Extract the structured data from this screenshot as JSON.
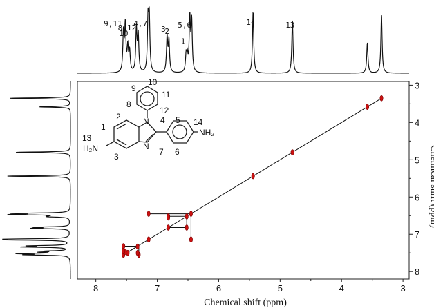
{
  "chart_data": {
    "type": "scatter",
    "subtype": "2D NMR COSY-style spectrum",
    "title": "",
    "xlabel": "Chemical shift (ppm)",
    "ylabel": "Chemical shift (ppm)",
    "xlim": [
      8.3,
      2.9
    ],
    "ylim": [
      2.9,
      8.2
    ],
    "x_ticks": [
      8,
      7,
      6,
      5,
      4,
      3
    ],
    "y_ticks": [
      3,
      4,
      5,
      6,
      7,
      8
    ],
    "grid": false,
    "legend": "none",
    "diagonal": {
      "from": [
        7.55,
        7.55
      ],
      "to": [
        3.35,
        3.35
      ]
    },
    "peaks_1d": [
      {
        "ppm": 7.55,
        "height": 0.62
      },
      {
        "ppm": 7.52,
        "height": 0.72
      },
      {
        "ppm": 7.48,
        "height": 0.38
      },
      {
        "ppm": 7.45,
        "height": 0.32
      },
      {
        "ppm": 7.34,
        "height": 0.68
      },
      {
        "ppm": 7.31,
        "height": 0.58
      },
      {
        "ppm": 7.15,
        "height": 0.8
      },
      {
        "ppm": 7.13,
        "height": 0.82
      },
      {
        "ppm": 6.84,
        "height": 0.55
      },
      {
        "ppm": 6.81,
        "height": 0.5
      },
      {
        "ppm": 6.53,
        "height": 0.26
      },
      {
        "ppm": 6.51,
        "height": 0.22
      },
      {
        "ppm": 6.47,
        "height": 0.83
      },
      {
        "ppm": 6.44,
        "height": 0.8
      },
      {
        "ppm": 5.44,
        "height": 0.97
      },
      {
        "ppm": 4.8,
        "height": 0.84
      },
      {
        "ppm": 3.58,
        "height": 0.48
      },
      {
        "ppm": 3.35,
        "height": 0.93
      }
    ],
    "peak_labels": [
      {
        "text": "9,11",
        "ppm": 7.55,
        "offset": 0.0
      },
      {
        "text": "10",
        "ppm": 7.45,
        "offset": 0.35
      },
      {
        "text": "8,12",
        "ppm": 7.32,
        "offset": 0.15
      },
      {
        "text": "4,7",
        "ppm": 7.14,
        "offset": 0.0
      },
      {
        "text": "3",
        "ppm": 6.84,
        "offset": 0.2
      },
      {
        "text": "2",
        "ppm": 6.78,
        "offset": 0.28
      },
      {
        "text": "1",
        "ppm": 6.52,
        "offset": 0.64
      },
      {
        "text": "5,6",
        "ppm": 6.42,
        "offset": 0.05
      },
      {
        "text": "14",
        "ppm": 5.38,
        "offset": -0.05
      },
      {
        "text": "13",
        "ppm": 4.74,
        "offset": 0.05
      }
    ],
    "cross_peaks": [
      {
        "x": 7.55,
        "y": 7.55
      },
      {
        "x": 7.52,
        "y": 7.47
      },
      {
        "x": 7.48,
        "y": 7.5
      },
      {
        "x": 7.32,
        "y": 7.33
      },
      {
        "x": 7.14,
        "y": 7.14
      },
      {
        "x": 6.82,
        "y": 6.82
      },
      {
        "x": 6.52,
        "y": 6.52
      },
      {
        "x": 6.45,
        "y": 6.45
      },
      {
        "x": 5.44,
        "y": 5.44
      },
      {
        "x": 4.8,
        "y": 4.8
      },
      {
        "x": 3.58,
        "y": 3.58
      },
      {
        "x": 3.35,
        "y": 3.35
      },
      {
        "x": 7.55,
        "y": 7.32
      },
      {
        "x": 7.55,
        "y": 7.45
      },
      {
        "x": 7.3,
        "y": 7.55
      },
      {
        "x": 7.14,
        "y": 6.45
      },
      {
        "x": 6.45,
        "y": 7.14
      },
      {
        "x": 6.82,
        "y": 6.52
      },
      {
        "x": 6.52,
        "y": 6.82
      },
      {
        "x": 6.82,
        "y": 6.55
      },
      {
        "x": 7.32,
        "y": 7.5
      }
    ],
    "connectors": [
      [
        [
          7.55,
          7.55
        ],
        [
          7.3,
          7.3
        ],
        [
          7.3,
          7.55
        ]
      ],
      [
        [
          7.55,
          7.32
        ],
        [
          7.3,
          7.32
        ]
      ],
      [
        [
          7.14,
          6.45
        ],
        [
          6.45,
          6.45
        ],
        [
          6.45,
          7.14
        ]
      ],
      [
        [
          6.82,
          6.52
        ],
        [
          6.52,
          6.52
        ],
        [
          6.52,
          6.82
        ],
        [
          6.82,
          6.82
        ]
      ]
    ],
    "structure": {
      "labels": [
        "9",
        "10",
        "11",
        "8",
        "12",
        "2",
        "4",
        "5",
        "14",
        "13",
        "1",
        "3",
        "7",
        "6"
      ],
      "atoms": [
        "N",
        "N",
        "NH₂",
        "H₂N"
      ]
    },
    "colors": {
      "peak": "#cc1111",
      "line": "#111111"
    }
  }
}
